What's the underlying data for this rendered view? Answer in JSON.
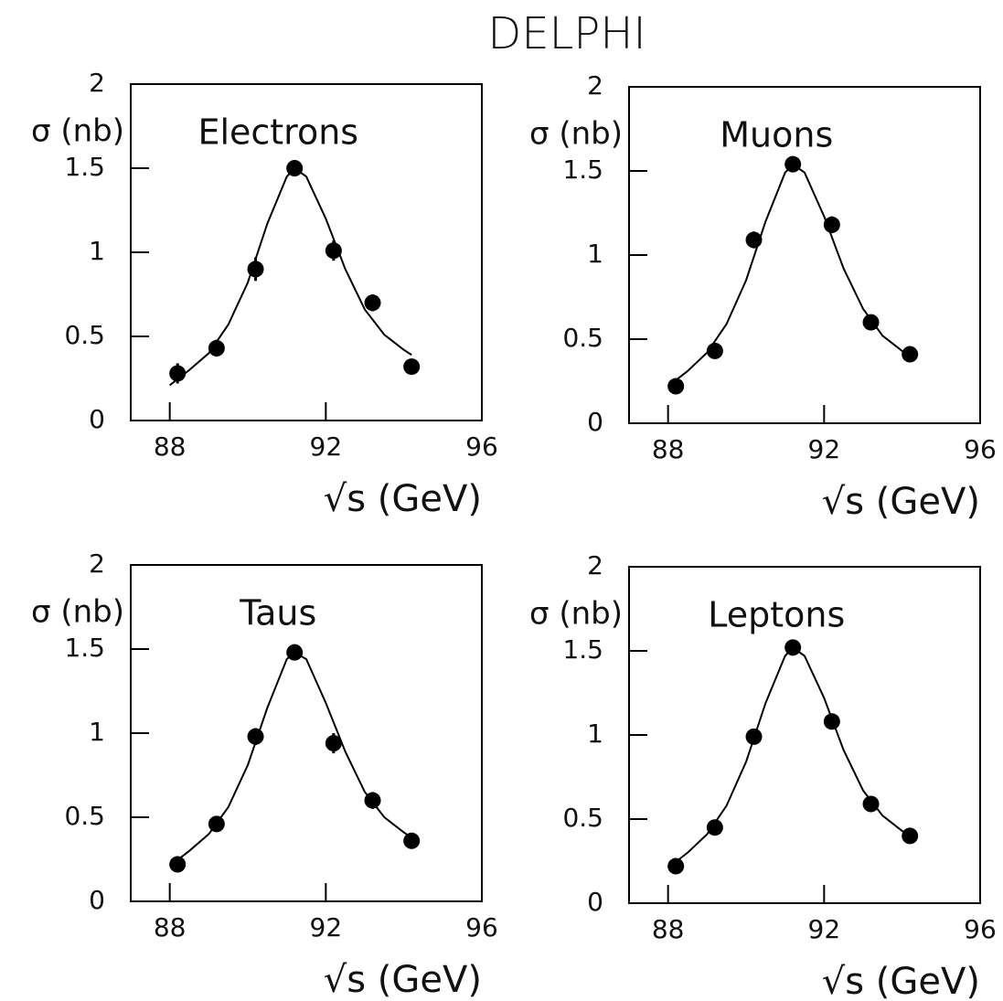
{
  "title": "DELPHI",
  "chart_data": [
    {
      "type": "scatter",
      "title": "Electrons",
      "x_label": "√s (GeV)",
      "y_label": "σ (nb)",
      "xlim": [
        87,
        96
      ],
      "xticks": [
        88,
        92,
        96
      ],
      "ylim": [
        0,
        2
      ],
      "yticks": [
        0,
        0.5,
        1,
        1.5,
        2
      ],
      "color": "#000000",
      "points": {
        "x": [
          88.2,
          89.2,
          90.2,
          91.2,
          92.2,
          93.2,
          94.2
        ],
        "values": [
          0.28,
          0.43,
          0.9,
          1.5,
          1.01,
          0.7,
          0.32
        ],
        "errors": [
          0.06,
          0.05,
          0.07,
          0.03,
          0.06,
          0.05,
          0.03
        ]
      },
      "fit": {
        "x": [
          88,
          88.5,
          89,
          89.5,
          90,
          90.5,
          91,
          91.2,
          91.5,
          92,
          92.5,
          93,
          93.5,
          94,
          94.2
        ],
        "values": [
          0.21,
          0.3,
          0.4,
          0.57,
          0.82,
          1.17,
          1.45,
          1.5,
          1.45,
          1.2,
          0.9,
          0.66,
          0.51,
          0.42,
          0.39
        ]
      }
    },
    {
      "type": "scatter",
      "title": "Muons",
      "x_label": "√s (GeV)",
      "y_label": "σ (nb)",
      "xlim": [
        87,
        96
      ],
      "xticks": [
        88,
        92,
        96
      ],
      "ylim": [
        0,
        2
      ],
      "yticks": [
        0,
        0.5,
        1,
        1.5,
        2
      ],
      "color": "#000000",
      "points": {
        "x": [
          88.2,
          89.2,
          90.2,
          91.2,
          92.2,
          93.2,
          94.2
        ],
        "values": [
          0.22,
          0.43,
          1.09,
          1.54,
          1.18,
          0.6,
          0.41
        ],
        "errors": [
          0.03,
          0.03,
          0.05,
          0.03,
          0.05,
          0.03,
          0.03
        ]
      },
      "fit": {
        "x": [
          88,
          88.5,
          89,
          89.5,
          90,
          90.5,
          91,
          91.2,
          91.5,
          92,
          92.5,
          93,
          93.5,
          94,
          94.2
        ],
        "values": [
          0.22,
          0.31,
          0.42,
          0.59,
          0.85,
          1.2,
          1.49,
          1.54,
          1.49,
          1.23,
          0.92,
          0.68,
          0.52,
          0.43,
          0.4
        ]
      }
    },
    {
      "type": "scatter",
      "title": "Taus",
      "x_label": "√s (GeV)",
      "y_label": "σ (nb)",
      "xlim": [
        87,
        96
      ],
      "xticks": [
        88,
        92,
        96
      ],
      "ylim": [
        0,
        2
      ],
      "yticks": [
        0,
        0.5,
        1,
        1.5,
        2
      ],
      "color": "#000000",
      "points": {
        "x": [
          88.2,
          89.2,
          90.2,
          91.2,
          92.2,
          93.2,
          94.2
        ],
        "values": [
          0.22,
          0.46,
          0.98,
          1.48,
          0.94,
          0.6,
          0.36
        ],
        "errors": [
          0.03,
          0.04,
          0.05,
          0.03,
          0.06,
          0.05,
          0.03
        ]
      },
      "fit": {
        "x": [
          88,
          88.5,
          89,
          89.5,
          90,
          90.5,
          91,
          91.2,
          91.5,
          92,
          92.5,
          93,
          93.5,
          94,
          94.2
        ],
        "values": [
          0.21,
          0.3,
          0.4,
          0.56,
          0.81,
          1.15,
          1.44,
          1.48,
          1.44,
          1.18,
          0.89,
          0.65,
          0.5,
          0.41,
          0.38
        ]
      }
    },
    {
      "type": "scatter",
      "title": "Leptons",
      "x_label": "√s (GeV)",
      "y_label": "σ (nb)",
      "xlim": [
        87,
        96
      ],
      "xticks": [
        88,
        92,
        96
      ],
      "ylim": [
        0,
        2
      ],
      "yticks": [
        0,
        0.5,
        1,
        1.5,
        2
      ],
      "color": "#000000",
      "points": {
        "x": [
          88.2,
          89.2,
          90.2,
          91.2,
          92.2,
          93.2,
          94.2
        ],
        "values": [
          0.22,
          0.45,
          0.99,
          1.52,
          1.08,
          0.59,
          0.4
        ],
        "errors": [
          0.02,
          0.02,
          0.03,
          0.02,
          0.03,
          0.02,
          0.02
        ]
      },
      "fit": {
        "x": [
          88,
          88.5,
          89,
          89.5,
          90,
          90.5,
          91,
          91.2,
          91.5,
          92,
          92.5,
          93,
          93.5,
          94,
          94.2
        ],
        "values": [
          0.21,
          0.3,
          0.41,
          0.58,
          0.84,
          1.19,
          1.47,
          1.52,
          1.47,
          1.22,
          0.91,
          0.67,
          0.52,
          0.43,
          0.4
        ]
      }
    }
  ]
}
